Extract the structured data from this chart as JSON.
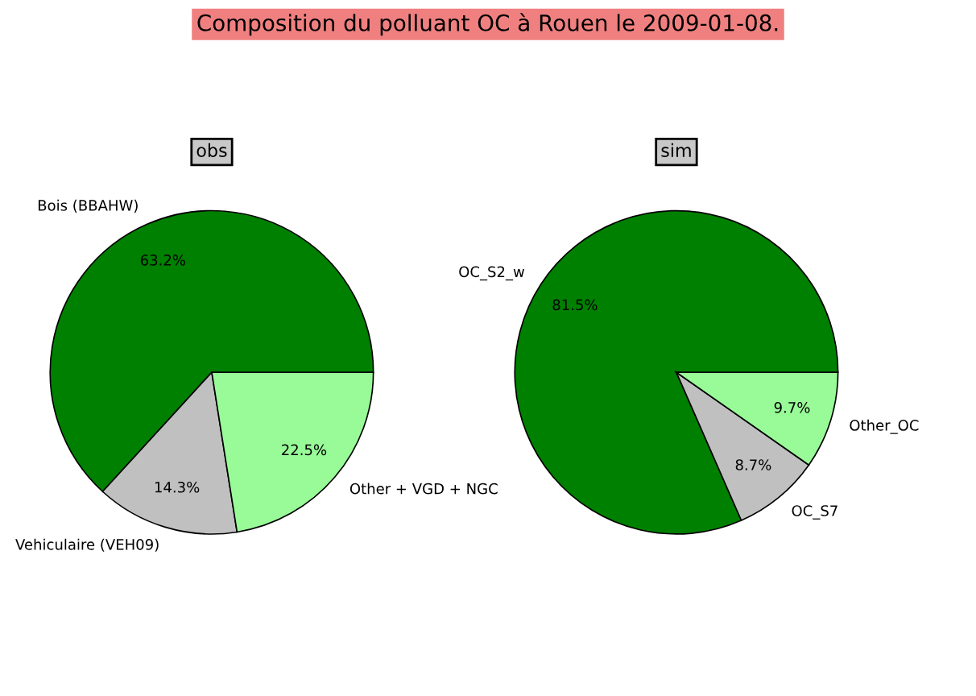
{
  "chart_data": [
    {
      "type": "pie",
      "title": "obs",
      "annotations": [
        "Composition du polluant OC à Rouen le 2009-01-08."
      ],
      "categories": [
        "Bois (BBAHW)",
        "Vehiculaire (VEH09)",
        "Other + VGD + NGC"
      ],
      "values": [
        63.2,
        14.3,
        22.5
      ],
      "value_labels": [
        "63.2%",
        "14.3%",
        "22.5%"
      ],
      "colors": [
        "#008000",
        "#c0c0c0",
        "#98fb98"
      ]
    },
    {
      "type": "pie",
      "title": "sim",
      "categories": [
        "OC_S2_w",
        "OC_S7",
        "Other_OC"
      ],
      "values": [
        81.5,
        8.7,
        9.7
      ],
      "value_labels": [
        "81.5%",
        "8.7%",
        "9.7%"
      ],
      "colors": [
        "#008000",
        "#c0c0c0",
        "#98fb98"
      ]
    }
  ]
}
